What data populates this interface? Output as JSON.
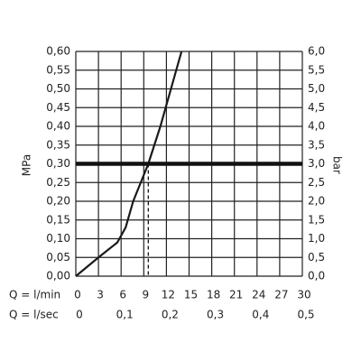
{
  "chart_data": {
    "type": "line",
    "x_label": "Q = l/min",
    "x2_label": "Q = l/sec",
    "y_label": "MPa",
    "y2_label": "bar",
    "x": [
      0,
      3,
      5.5,
      6.6,
      7.6,
      8.6,
      9.6,
      11.2,
      12.6,
      14.0
    ],
    "values": [
      0,
      0.05,
      0.09,
      0.13,
      0.2,
      0.25,
      0.3,
      0.4,
      0.5,
      0.6
    ],
    "color": "#1a1a1a",
    "reference_y": 0.3,
    "reference_x": 9.6,
    "xlim": [
      0,
      30
    ],
    "xticks": [
      0,
      3,
      6,
      9,
      12,
      15,
      18,
      21,
      24,
      27,
      30
    ],
    "x2lim": [
      0,
      0.5
    ],
    "x2ticks": [
      0,
      {
        "value": 0.1,
        "label": "0,1"
      },
      {
        "value": 0.2,
        "label": "0,2"
      },
      {
        "value": 0.3,
        "label": "0,3"
      },
      {
        "value": 0.4,
        "label": "0,4"
      },
      {
        "value": 0.5,
        "label": "0,5"
      }
    ],
    "ylim": [
      0,
      0.6
    ],
    "yticks": [
      {
        "value": 0,
        "label": "0,00"
      },
      {
        "value": 0.05,
        "label": "0,05"
      },
      {
        "value": 0.1,
        "label": "0,10"
      },
      {
        "value": 0.15,
        "label": "0,15"
      },
      {
        "value": 0.2,
        "label": "0,20"
      },
      {
        "value": 0.25,
        "label": "0,25"
      },
      {
        "value": 0.3,
        "label": "0,30"
      },
      {
        "value": 0.35,
        "label": "0,35"
      },
      {
        "value": 0.4,
        "label": "0,40"
      },
      {
        "value": 0.45,
        "label": "0,45"
      },
      {
        "value": 0.5,
        "label": "0,50"
      },
      {
        "value": 0.55,
        "label": "0,55"
      },
      {
        "value": 0.6,
        "label": "0,60"
      }
    ],
    "y2lim": [
      0,
      6
    ],
    "y2ticks": [
      {
        "value": 0,
        "label": "0,0"
      },
      {
        "value": 0.5,
        "label": "0,5"
      },
      {
        "value": 1,
        "label": "1,0"
      },
      {
        "value": 1.5,
        "label": "1,5"
      },
      {
        "value": 2,
        "label": "2,0"
      },
      {
        "value": 2.5,
        "label": "2,5"
      },
      {
        "value": 3,
        "label": "3,0"
      },
      {
        "value": 3.5,
        "label": "3,5"
      },
      {
        "value": 4,
        "label": "4,0"
      },
      {
        "value": 4.5,
        "label": "4,5"
      },
      {
        "value": 5,
        "label": "5,0"
      },
      {
        "value": 5.5,
        "label": "5,5"
      },
      {
        "value": 6,
        "label": "6,0"
      }
    ],
    "grid": true
  }
}
